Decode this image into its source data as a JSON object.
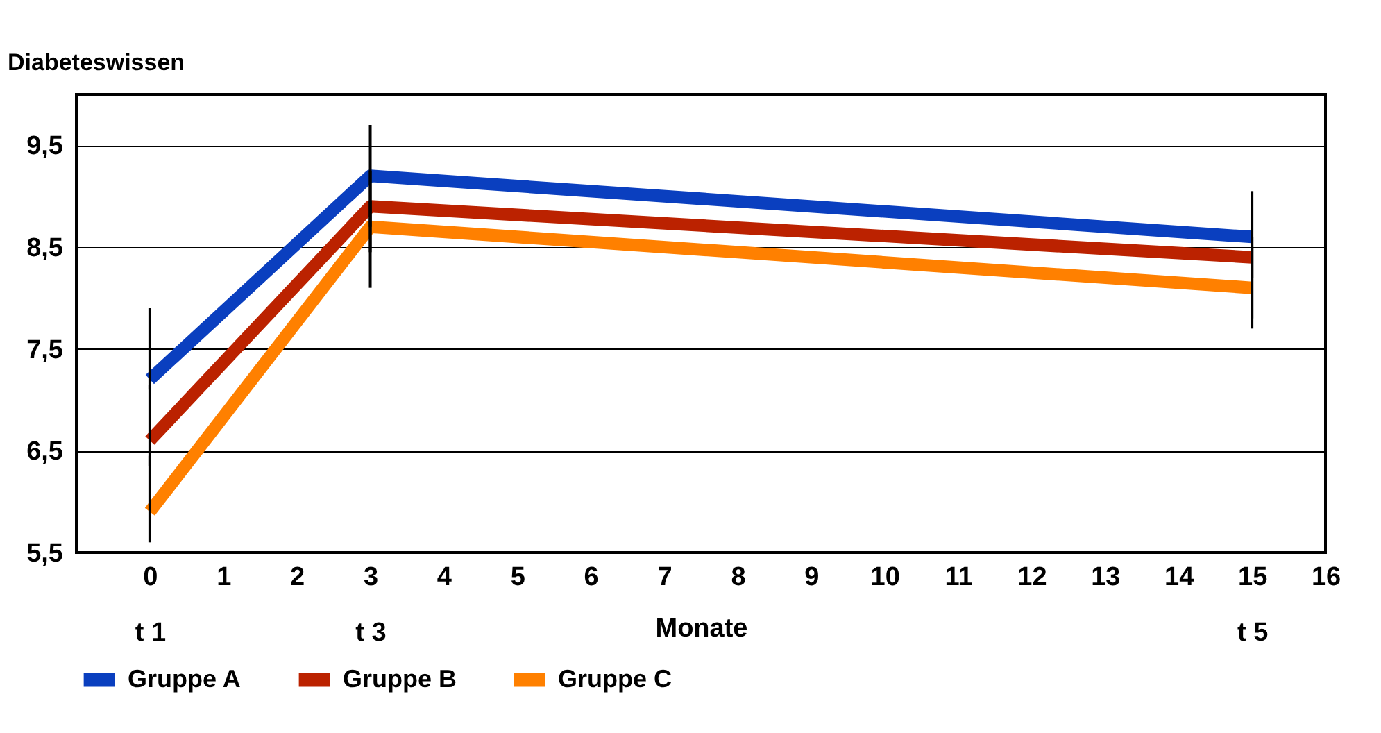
{
  "chart_data": {
    "type": "line",
    "ylabel": "Diabeteswissen",
    "xlabel": "Monate",
    "x": [
      0,
      3,
      15
    ],
    "series": [
      {
        "name": "Gruppe A",
        "color": "#0a3fbf",
        "values": [
          7.2,
          9.2,
          8.6
        ],
        "errors": [
          [
            7.1,
            7.9
          ],
          [
            8.7,
            9.7
          ],
          [
            8.2,
            9.05
          ]
        ]
      },
      {
        "name": "Gruppe B",
        "color": "#bb2200",
        "values": [
          6.6,
          8.9,
          8.4
        ],
        "errors": [
          [
            6.35,
            7.15
          ],
          [
            8.45,
            9.25
          ],
          [
            7.7,
            8.5
          ]
        ]
      },
      {
        "name": "Gruppe C",
        "color": "#ff8000",
        "values": [
          5.9,
          8.7,
          8.1
        ],
        "errors": [
          [
            5.6,
            6.45
          ],
          [
            8.1,
            8.95
          ],
          [
            7.8,
            8.6
          ]
        ]
      }
    ],
    "xlim": [
      -1,
      16
    ],
    "xticks": [
      {
        "value": 0,
        "label": "0\nt 1"
      },
      1,
      2,
      {
        "value": 3,
        "label": "3\nt 3"
      },
      4,
      5,
      6,
      7,
      8,
      9,
      10,
      11,
      12,
      13,
      14,
      {
        "value": 15,
        "label": "15\nt 5"
      },
      16
    ],
    "ylim": [
      5.5,
      10
    ],
    "yticks": [
      {
        "value": 5.5,
        "label": "5,5"
      },
      {
        "value": 6.5,
        "label": "6,5"
      },
      {
        "value": 7.5,
        "label": "7,5"
      },
      {
        "value": 8.5,
        "label": "8,5"
      },
      {
        "value": 9.5,
        "label": "9,5"
      }
    ],
    "grid": "y",
    "legend": "bottom",
    "marker": "none",
    "line_style": "solid"
  }
}
